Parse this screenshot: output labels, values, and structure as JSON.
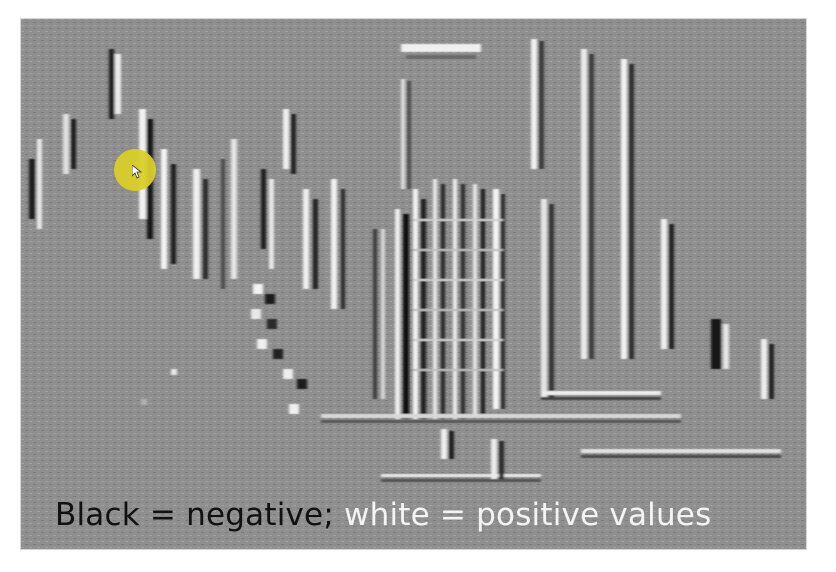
{
  "image": {
    "subject": "edge-filtered-feature-map",
    "palette": {
      "background": "#8f8f8f",
      "dark_edge": "#1a1a1a",
      "light_edge": "#f2f2f2",
      "cursor_highlight": "#d9cf2a"
    }
  },
  "caption": {
    "negative_part": "Black = negative;",
    "positive_part": " white = positive values"
  },
  "cursor": {
    "icon": "cursor-highlight-icon"
  }
}
